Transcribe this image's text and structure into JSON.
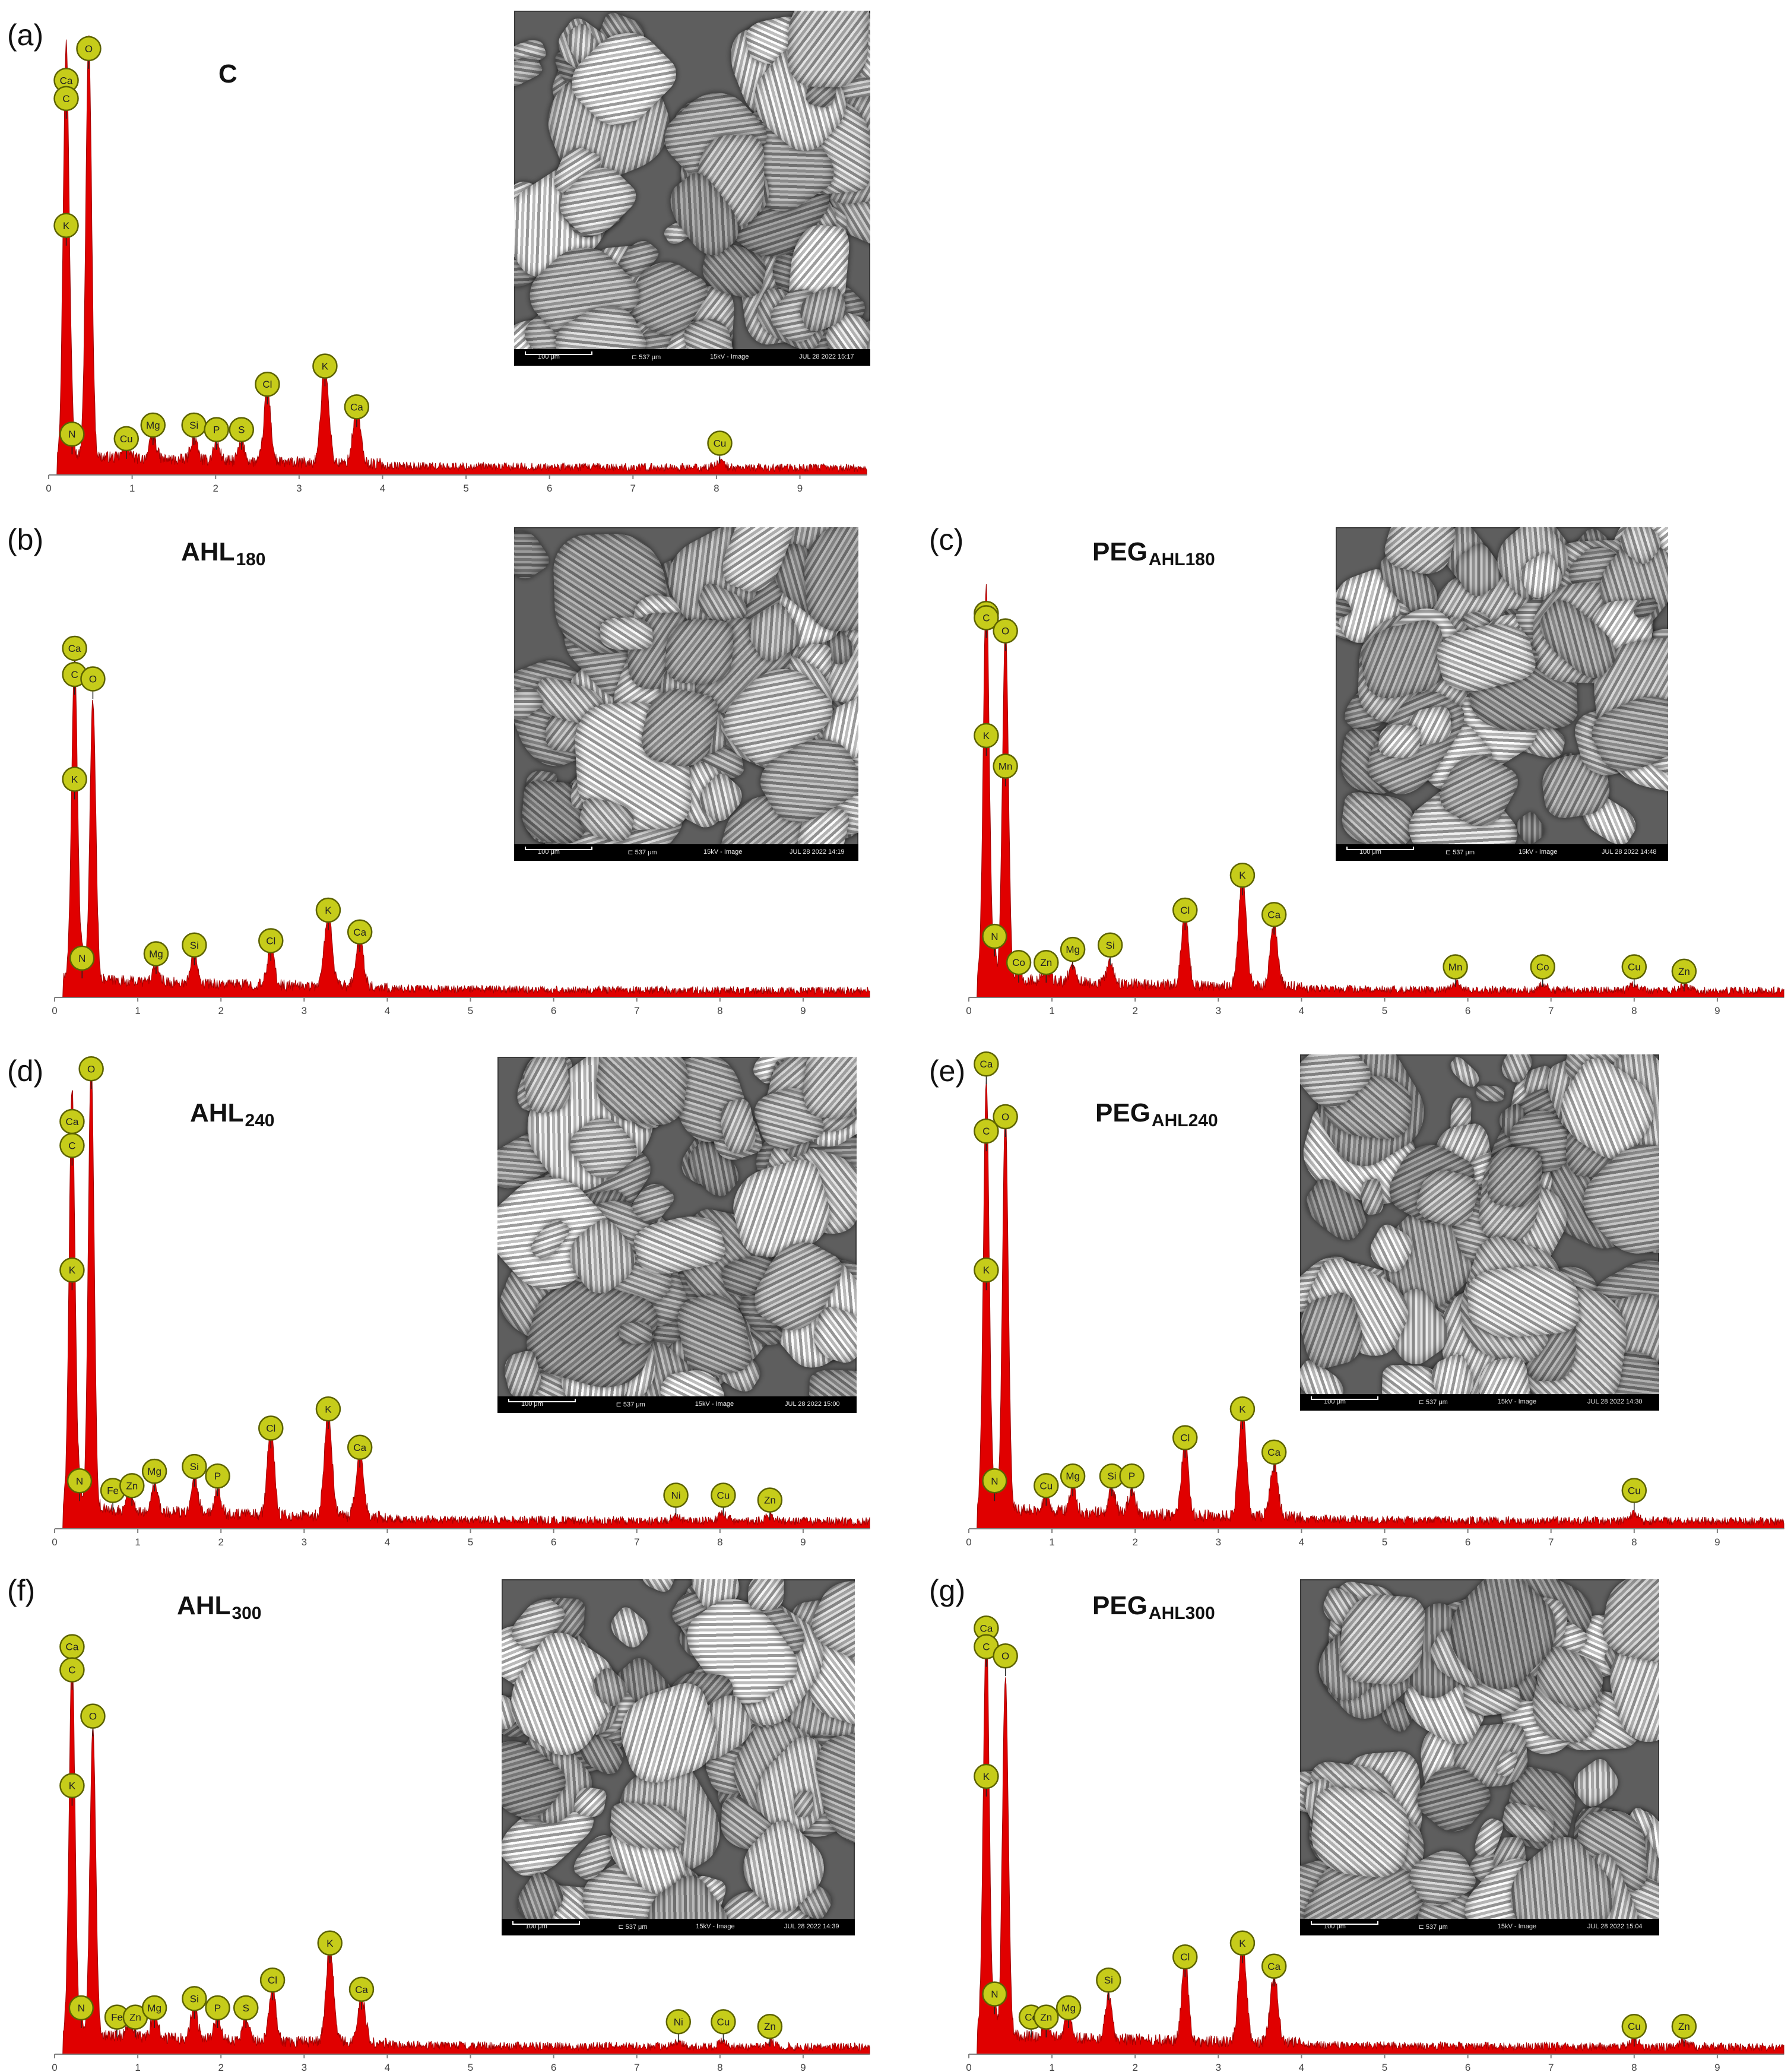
{
  "figure": {
    "panels": [
      {
        "letter": "(a)",
        "title_main": "C",
        "title_sub": "",
        "sem": {
          "scale_label": "100 μm",
          "fov_label": "⊏ 537 μm",
          "mode_label": "15kV - Image",
          "date_label": "JUL 28 2022 15:17"
        }
      },
      {
        "letter": "(b)",
        "title_main": "AHL",
        "title_sub": "180",
        "sem": {
          "scale_label": "100 μm",
          "fov_label": "⊏ 537 μm",
          "mode_label": "15kV - Image",
          "date_label": "JUL 28 2022 14:19"
        }
      },
      {
        "letter": "(c)",
        "title_main": "PEG",
        "title_sub": "AHL180",
        "sem": {
          "scale_label": "100 μm",
          "fov_label": "⊏ 537 μm",
          "mode_label": "15kV - Image",
          "date_label": "JUL 28 2022 14:48"
        }
      },
      {
        "letter": "(d)",
        "title_main": "AHL",
        "title_sub": "240",
        "sem": {
          "scale_label": "100 μm",
          "fov_label": "⊏ 537 μm",
          "mode_label": "15kV - Image",
          "date_label": "JUL 28 2022 15:00"
        }
      },
      {
        "letter": "(e)",
        "title_main": "PEG",
        "title_sub": "AHL240",
        "sem": {
          "scale_label": "100 μm",
          "fov_label": "⊏ 537 μm",
          "mode_label": "15kV - Image",
          "date_label": "JUL 28 2022 14:30"
        }
      },
      {
        "letter": "(f)",
        "title_main": "AHL",
        "title_sub": "300",
        "sem": {
          "scale_label": "100 μm",
          "fov_label": "⊏ 537 μm",
          "mode_label": "15kV - Image",
          "date_label": "JUL 28 2022 14:39"
        }
      },
      {
        "letter": "(g)",
        "title_main": "PEG",
        "title_sub": "AHL300",
        "sem": {
          "scale_label": "100 μm",
          "fov_label": "⊏ 537 μm",
          "mode_label": "15kV - Image",
          "date_label": "JUL 28 2022 15:04"
        }
      }
    ]
  },
  "colors": {
    "spectrum_fill": "#e00000",
    "spectrum_line": "#a00000",
    "marker_fill": "#c6cc1a",
    "marker_stroke": "#5c6200",
    "axis": "#7f7f7f"
  },
  "chart_data": [
    {
      "type": "area",
      "panel": "(a)",
      "title": "C",
      "xticks": [
        0,
        1,
        2,
        3,
        4,
        5,
        6,
        7,
        8,
        9
      ],
      "xlim": [
        0,
        9.8
      ],
      "ylim": [
        0,
        100
      ],
      "peaks": [
        {
          "x": 0.21,
          "y": 91,
          "w": 0.035
        },
        {
          "x": 0.48,
          "y": 92,
          "w": 0.035
        },
        {
          "x": 0.28,
          "y": 6,
          "w": 0.02
        },
        {
          "x": 0.93,
          "y": 3,
          "w": 0.04
        },
        {
          "x": 1.25,
          "y": 5,
          "w": 0.04
        },
        {
          "x": 1.74,
          "y": 5,
          "w": 0.04
        },
        {
          "x": 2.01,
          "y": 4,
          "w": 0.04
        },
        {
          "x": 2.31,
          "y": 4,
          "w": 0.04
        },
        {
          "x": 2.62,
          "y": 16,
          "w": 0.04
        },
        {
          "x": 3.31,
          "y": 22,
          "w": 0.045
        },
        {
          "x": 3.69,
          "y": 12,
          "w": 0.045
        },
        {
          "x": 8.04,
          "y": 1.5,
          "w": 0.05
        }
      ],
      "labels": [
        {
          "el": "O",
          "x": 0.48,
          "y": 94
        },
        {
          "el": "Ca",
          "x": 0.21,
          "y": 87
        },
        {
          "el": "C",
          "x": 0.21,
          "y": 83
        },
        {
          "el": "K",
          "x": 0.21,
          "y": 55
        },
        {
          "el": "N",
          "x": 0.28,
          "y": 9
        },
        {
          "el": "Cu",
          "x": 0.93,
          "y": 8
        },
        {
          "el": "Mg",
          "x": 1.25,
          "y": 11
        },
        {
          "el": "Si",
          "x": 1.74,
          "y": 11
        },
        {
          "el": "P",
          "x": 2.01,
          "y": 10
        },
        {
          "el": "S",
          "x": 2.31,
          "y": 10
        },
        {
          "el": "Cl",
          "x": 2.62,
          "y": 20
        },
        {
          "el": "K",
          "x": 3.31,
          "y": 24
        },
        {
          "el": "Ca",
          "x": 3.69,
          "y": 15
        },
        {
          "el": "Cu",
          "x": 8.04,
          "y": 7
        }
      ]
    },
    {
      "type": "area",
      "panel": "(b)",
      "title": "AHL180",
      "xticks": [
        0,
        1,
        2,
        3,
        4,
        5,
        6,
        7,
        8,
        9
      ],
      "xlim": [
        0,
        9.8
      ],
      "ylim": [
        0,
        100
      ],
      "peaks": [
        {
          "x": 0.24,
          "y": 74,
          "w": 0.035
        },
        {
          "x": 0.46,
          "y": 64,
          "w": 0.035
        },
        {
          "x": 0.33,
          "y": 5,
          "w": 0.02
        },
        {
          "x": 1.22,
          "y": 4,
          "w": 0.04
        },
        {
          "x": 1.68,
          "y": 7,
          "w": 0.04
        },
        {
          "x": 2.6,
          "y": 9,
          "w": 0.04
        },
        {
          "x": 3.29,
          "y": 17,
          "w": 0.045
        },
        {
          "x": 3.67,
          "y": 11,
          "w": 0.045
        }
      ],
      "labels": [
        {
          "el": "Ca",
          "x": 0.24,
          "y": 80
        },
        {
          "el": "C",
          "x": 0.24,
          "y": 74
        },
        {
          "el": "O",
          "x": 0.46,
          "y": 73
        },
        {
          "el": "K",
          "x": 0.24,
          "y": 50
        },
        {
          "el": "N",
          "x": 0.33,
          "y": 9
        },
        {
          "el": "Mg",
          "x": 1.22,
          "y": 10
        },
        {
          "el": "Si",
          "x": 1.68,
          "y": 12
        },
        {
          "el": "Cl",
          "x": 2.6,
          "y": 13
        },
        {
          "el": "K",
          "x": 3.29,
          "y": 20
        },
        {
          "el": "Ca",
          "x": 3.67,
          "y": 15
        }
      ]
    },
    {
      "type": "area",
      "panel": "(c)",
      "title": "PEG AHL180",
      "xticks": [
        0,
        1,
        2,
        3,
        4,
        5,
        6,
        7,
        8,
        9
      ],
      "xlim": [
        0,
        9.8
      ],
      "ylim": [
        0,
        100
      ],
      "peaks": [
        {
          "x": 0.21,
          "y": 90,
          "w": 0.035
        },
        {
          "x": 0.44,
          "y": 81,
          "w": 0.035
        },
        {
          "x": 0.31,
          "y": 7,
          "w": 0.02
        },
        {
          "x": 0.6,
          "y": 3,
          "w": 0.03
        },
        {
          "x": 0.93,
          "y": 3,
          "w": 0.04
        },
        {
          "x": 1.25,
          "y": 4,
          "w": 0.04
        },
        {
          "x": 1.7,
          "y": 5,
          "w": 0.04
        },
        {
          "x": 2.6,
          "y": 18,
          "w": 0.04
        },
        {
          "x": 3.29,
          "y": 25,
          "w": 0.045
        },
        {
          "x": 3.67,
          "y": 14,
          "w": 0.045
        },
        {
          "x": 5.85,
          "y": 1.5,
          "w": 0.05
        },
        {
          "x": 6.9,
          "y": 1.2,
          "w": 0.05
        },
        {
          "x": 8.0,
          "y": 1.5,
          "w": 0.05
        },
        {
          "x": 8.6,
          "y": 1.2,
          "w": 0.05
        }
      ],
      "labels": [
        {
          "el": "Ca",
          "x": 0.21,
          "y": 88
        },
        {
          "el": "C",
          "x": 0.21,
          "y": 87
        },
        {
          "el": "O",
          "x": 0.44,
          "y": 84
        },
        {
          "el": "K",
          "x": 0.21,
          "y": 60
        },
        {
          "el": "Mn",
          "x": 0.44,
          "y": 53
        },
        {
          "el": "N",
          "x": 0.31,
          "y": 14
        },
        {
          "el": "Co",
          "x": 0.6,
          "y": 8
        },
        {
          "el": "Zn",
          "x": 0.93,
          "y": 8
        },
        {
          "el": "Mg",
          "x": 1.25,
          "y": 11
        },
        {
          "el": "Si",
          "x": 1.7,
          "y": 12
        },
        {
          "el": "Cl",
          "x": 2.6,
          "y": 20
        },
        {
          "el": "K",
          "x": 3.29,
          "y": 28
        },
        {
          "el": "Ca",
          "x": 3.67,
          "y": 19
        },
        {
          "el": "Mn",
          "x": 5.85,
          "y": 7
        },
        {
          "el": "Co",
          "x": 6.9,
          "y": 7
        },
        {
          "el": "Cu",
          "x": 8.0,
          "y": 7
        },
        {
          "el": "Zn",
          "x": 8.6,
          "y": 6
        }
      ]
    },
    {
      "type": "area",
      "panel": "(d)",
      "title": "AHL240",
      "xticks": [
        0,
        1,
        2,
        3,
        4,
        5,
        6,
        7,
        8,
        9
      ],
      "xlim": [
        0,
        9.8
      ],
      "ylim": [
        0,
        100
      ],
      "peaks": [
        {
          "x": 0.21,
          "y": 88,
          "w": 0.035
        },
        {
          "x": 0.44,
          "y": 93,
          "w": 0.035
        },
        {
          "x": 0.3,
          "y": 5,
          "w": 0.02
        },
        {
          "x": 0.9,
          "y": 4,
          "w": 0.04
        },
        {
          "x": 1.2,
          "y": 6,
          "w": 0.04
        },
        {
          "x": 1.68,
          "y": 8,
          "w": 0.04
        },
        {
          "x": 1.96,
          "y": 5,
          "w": 0.04
        },
        {
          "x": 2.6,
          "y": 19,
          "w": 0.04
        },
        {
          "x": 3.29,
          "y": 22,
          "w": 0.045
        },
        {
          "x": 3.67,
          "y": 13,
          "w": 0.045
        },
        {
          "x": 7.47,
          "y": 1.2,
          "w": 0.05
        },
        {
          "x": 8.04,
          "y": 1.5,
          "w": 0.05
        },
        {
          "x": 8.6,
          "y": 1.2,
          "w": 0.05
        }
      ],
      "labels": [
        {
          "el": "O",
          "x": 0.44,
          "y": 96
        },
        {
          "el": "Ca",
          "x": 0.21,
          "y": 85
        },
        {
          "el": "C",
          "x": 0.21,
          "y": 80
        },
        {
          "el": "K",
          "x": 0.21,
          "y": 54
        },
        {
          "el": "N",
          "x": 0.3,
          "y": 10
        },
        {
          "el": "Fe",
          "x": 0.7,
          "y": 8
        },
        {
          "el": "Zn",
          "x": 0.93,
          "y": 9
        },
        {
          "el": "Mg",
          "x": 1.2,
          "y": 12
        },
        {
          "el": "Si",
          "x": 1.68,
          "y": 13
        },
        {
          "el": "P",
          "x": 1.96,
          "y": 11
        },
        {
          "el": "Cl",
          "x": 2.6,
          "y": 21
        },
        {
          "el": "K",
          "x": 3.29,
          "y": 25
        },
        {
          "el": "Ca",
          "x": 3.67,
          "y": 17
        },
        {
          "el": "Ni",
          "x": 7.47,
          "y": 7
        },
        {
          "el": "Cu",
          "x": 8.04,
          "y": 7
        },
        {
          "el": "Zn",
          "x": 8.6,
          "y": 6
        }
      ]
    },
    {
      "type": "area",
      "panel": "(e)",
      "title": "PEGAHL240",
      "xticks": [
        0,
        1,
        2,
        3,
        4,
        5,
        6,
        7,
        8,
        9
      ],
      "xlim": [
        0,
        9.8
      ],
      "ylim": [
        0,
        100
      ],
      "peaks": [
        {
          "x": 0.21,
          "y": 89,
          "w": 0.035
        },
        {
          "x": 0.44,
          "y": 82,
          "w": 0.035
        },
        {
          "x": 0.31,
          "y": 5,
          "w": 0.02
        },
        {
          "x": 0.93,
          "y": 3,
          "w": 0.04
        },
        {
          "x": 1.25,
          "y": 5,
          "w": 0.04
        },
        {
          "x": 1.72,
          "y": 5,
          "w": 0.04
        },
        {
          "x": 1.96,
          "y": 5,
          "w": 0.04
        },
        {
          "x": 2.6,
          "y": 16,
          "w": 0.04
        },
        {
          "x": 3.29,
          "y": 22,
          "w": 0.045
        },
        {
          "x": 3.67,
          "y": 11,
          "w": 0.045
        },
        {
          "x": 8.0,
          "y": 1.5,
          "w": 0.05
        }
      ],
      "labels": [
        {
          "el": "Ca",
          "x": 0.21,
          "y": 97
        },
        {
          "el": "C",
          "x": 0.21,
          "y": 83
        },
        {
          "el": "O",
          "x": 0.44,
          "y": 86
        },
        {
          "el": "K",
          "x": 0.21,
          "y": 54
        },
        {
          "el": "N",
          "x": 0.31,
          "y": 10
        },
        {
          "el": "Cu",
          "x": 0.93,
          "y": 9
        },
        {
          "el": "Mg",
          "x": 1.25,
          "y": 11
        },
        {
          "el": "Si",
          "x": 1.72,
          "y": 11
        },
        {
          "el": "P",
          "x": 1.96,
          "y": 11
        },
        {
          "el": "Cl",
          "x": 2.6,
          "y": 19
        },
        {
          "el": "K",
          "x": 3.29,
          "y": 25
        },
        {
          "el": "Ca",
          "x": 3.67,
          "y": 16
        },
        {
          "el": "Cu",
          "x": 8.0,
          "y": 8
        }
      ]
    },
    {
      "type": "area",
      "panel": "(f)",
      "title": "AHL300",
      "xticks": [
        0,
        1,
        2,
        3,
        4,
        5,
        6,
        7,
        8,
        9
      ],
      "xlim": [
        0,
        9.8
      ],
      "ylim": [
        0,
        100
      ],
      "peaks": [
        {
          "x": 0.21,
          "y": 82,
          "w": 0.035
        },
        {
          "x": 0.46,
          "y": 66,
          "w": 0.035
        },
        {
          "x": 0.32,
          "y": 5,
          "w": 0.02
        },
        {
          "x": 0.9,
          "y": 3,
          "w": 0.04
        },
        {
          "x": 1.2,
          "y": 5,
          "w": 0.04
        },
        {
          "x": 1.68,
          "y": 7,
          "w": 0.04
        },
        {
          "x": 1.96,
          "y": 5,
          "w": 0.04
        },
        {
          "x": 2.3,
          "y": 5,
          "w": 0.04
        },
        {
          "x": 2.62,
          "y": 12,
          "w": 0.04
        },
        {
          "x": 3.31,
          "y": 21,
          "w": 0.045
        },
        {
          "x": 3.69,
          "y": 10,
          "w": 0.045
        },
        {
          "x": 7.5,
          "y": 1.2,
          "w": 0.05
        },
        {
          "x": 8.04,
          "y": 1.2,
          "w": 0.05
        },
        {
          "x": 8.6,
          "y": 1.2,
          "w": 0.05
        }
      ],
      "labels": [
        {
          "el": "Ca",
          "x": 0.21,
          "y": 88
        },
        {
          "el": "C",
          "x": 0.21,
          "y": 83
        },
        {
          "el": "O",
          "x": 0.46,
          "y": 73
        },
        {
          "el": "K",
          "x": 0.21,
          "y": 58
        },
        {
          "el": "N",
          "x": 0.32,
          "y": 10
        },
        {
          "el": "Fe",
          "x": 0.75,
          "y": 8
        },
        {
          "el": "Zn",
          "x": 0.97,
          "y": 8
        },
        {
          "el": "Mg",
          "x": 1.2,
          "y": 10
        },
        {
          "el": "Si",
          "x": 1.68,
          "y": 12
        },
        {
          "el": "P",
          "x": 1.96,
          "y": 10
        },
        {
          "el": "S",
          "x": 2.3,
          "y": 10
        },
        {
          "el": "Cl",
          "x": 2.62,
          "y": 16
        },
        {
          "el": "K",
          "x": 3.31,
          "y": 24
        },
        {
          "el": "Ca",
          "x": 3.69,
          "y": 14
        },
        {
          "el": "Ni",
          "x": 7.5,
          "y": 7
        },
        {
          "el": "Cu",
          "x": 8.04,
          "y": 7
        },
        {
          "el": "Zn",
          "x": 8.6,
          "y": 6
        }
      ]
    },
    {
      "type": "area",
      "panel": "(g)",
      "title": "PEGAHL300",
      "xticks": [
        0,
        1,
        2,
        3,
        4,
        5,
        6,
        7,
        8,
        9
      ],
      "xlim": [
        0,
        9.8
      ],
      "ylim": [
        0,
        100
      ],
      "peaks": [
        {
          "x": 0.21,
          "y": 89,
          "w": 0.035
        },
        {
          "x": 0.44,
          "y": 77,
          "w": 0.035
        },
        {
          "x": 0.31,
          "y": 6,
          "w": 0.02
        },
        {
          "x": 0.93,
          "y": 3,
          "w": 0.04
        },
        {
          "x": 1.2,
          "y": 5,
          "w": 0.04
        },
        {
          "x": 1.68,
          "y": 9,
          "w": 0.04
        },
        {
          "x": 2.6,
          "y": 18,
          "w": 0.04
        },
        {
          "x": 3.29,
          "y": 22,
          "w": 0.045
        },
        {
          "x": 3.67,
          "y": 15,
          "w": 0.045
        },
        {
          "x": 8.0,
          "y": 1.5,
          "w": 0.05
        },
        {
          "x": 8.6,
          "y": 1.2,
          "w": 0.05
        }
      ],
      "labels": [
        {
          "el": "Ca",
          "x": 0.21,
          "y": 92
        },
        {
          "el": "C",
          "x": 0.21,
          "y": 88
        },
        {
          "el": "O",
          "x": 0.44,
          "y": 86
        },
        {
          "el": "K",
          "x": 0.21,
          "y": 60
        },
        {
          "el": "N",
          "x": 0.31,
          "y": 13
        },
        {
          "el": "Co",
          "x": 0.75,
          "y": 8
        },
        {
          "el": "Zn",
          "x": 0.93,
          "y": 8
        },
        {
          "el": "Mg",
          "x": 1.2,
          "y": 10
        },
        {
          "el": "Si",
          "x": 1.68,
          "y": 16
        },
        {
          "el": "Cl",
          "x": 2.6,
          "y": 21
        },
        {
          "el": "K",
          "x": 3.29,
          "y": 24
        },
        {
          "el": "Ca",
          "x": 3.67,
          "y": 19
        },
        {
          "el": "Cu",
          "x": 8.0,
          "y": 6
        },
        {
          "el": "Zn",
          "x": 8.6,
          "y": 6
        }
      ]
    }
  ]
}
